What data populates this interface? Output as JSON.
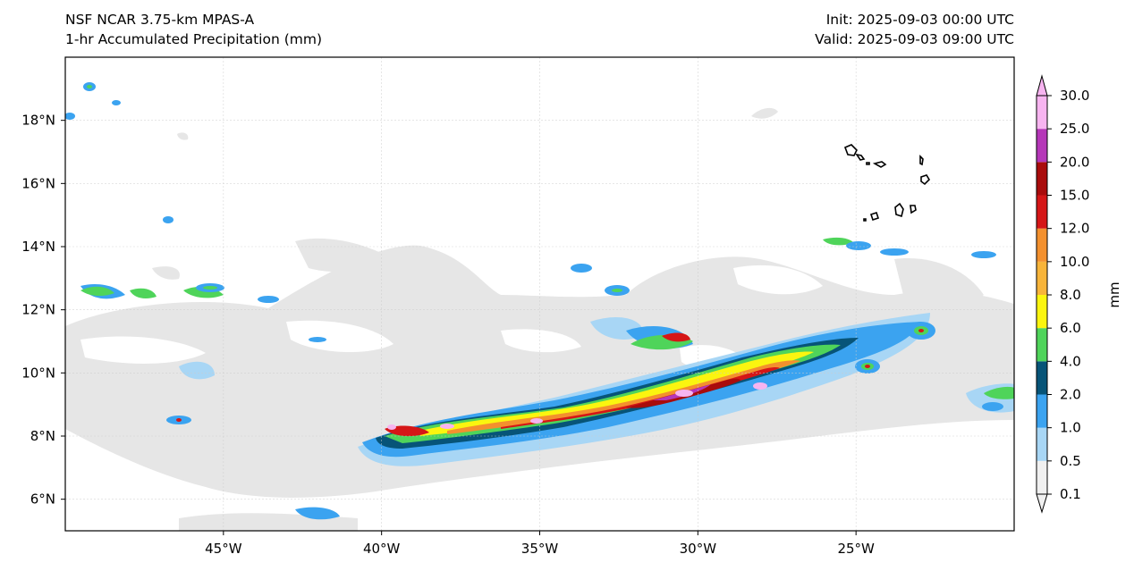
{
  "header": {
    "model": "NSF NCAR 3.75-km MPAS-A",
    "field": "1-hr Accumulated Precipitation (mm)",
    "init": "Init: 2025-09-03 00:00 UTC",
    "valid": "Valid: 2025-09-03 09:00 UTC"
  },
  "map": {
    "lon_range": [
      -50,
      -20
    ],
    "lat_range": [
      5,
      20
    ],
    "lon_ticks": [
      {
        "value": -45,
        "label": "45°W"
      },
      {
        "value": -40,
        "label": "40°W"
      },
      {
        "value": -35,
        "label": "35°W"
      },
      {
        "value": -30,
        "label": "30°W"
      },
      {
        "value": -25,
        "label": "25°W"
      }
    ],
    "lat_ticks": [
      {
        "value": 6,
        "label": "6°N"
      },
      {
        "value": 8,
        "label": "8°N"
      },
      {
        "value": 10,
        "label": "10°N"
      },
      {
        "value": 12,
        "label": "12°N"
      },
      {
        "value": 14,
        "label": "14°N"
      },
      {
        "value": 16,
        "label": "16°N"
      },
      {
        "value": 18,
        "label": "18°N"
      }
    ],
    "gridlines": true,
    "coastline_feature": "Cabo Verde islands outline"
  },
  "colorbar": {
    "unit": "mm",
    "extend": "both",
    "levels": [
      {
        "label": "0.1",
        "color": "#f0f0f0"
      },
      {
        "label": "0.5",
        "color": "#a8d6f5"
      },
      {
        "label": "1.0",
        "color": "#3ba3f0"
      },
      {
        "label": "2.0",
        "color": "#075478"
      },
      {
        "label": "4.0",
        "color": "#4fd45a"
      },
      {
        "label": "6.0",
        "color": "#fbf50f"
      },
      {
        "label": "8.0",
        "color": "#f7b43a"
      },
      {
        "label": "10.0",
        "color": "#f3902e"
      },
      {
        "label": "12.0",
        "color": "#d51617"
      },
      {
        "label": "15.0",
        "color": "#a90c0c"
      },
      {
        "label": "20.0",
        "color": "#b537b8"
      },
      {
        "label": "25.0",
        "color": "#f7b4f0"
      },
      {
        "label": "30.0",
        "color": ""
      }
    ]
  }
}
